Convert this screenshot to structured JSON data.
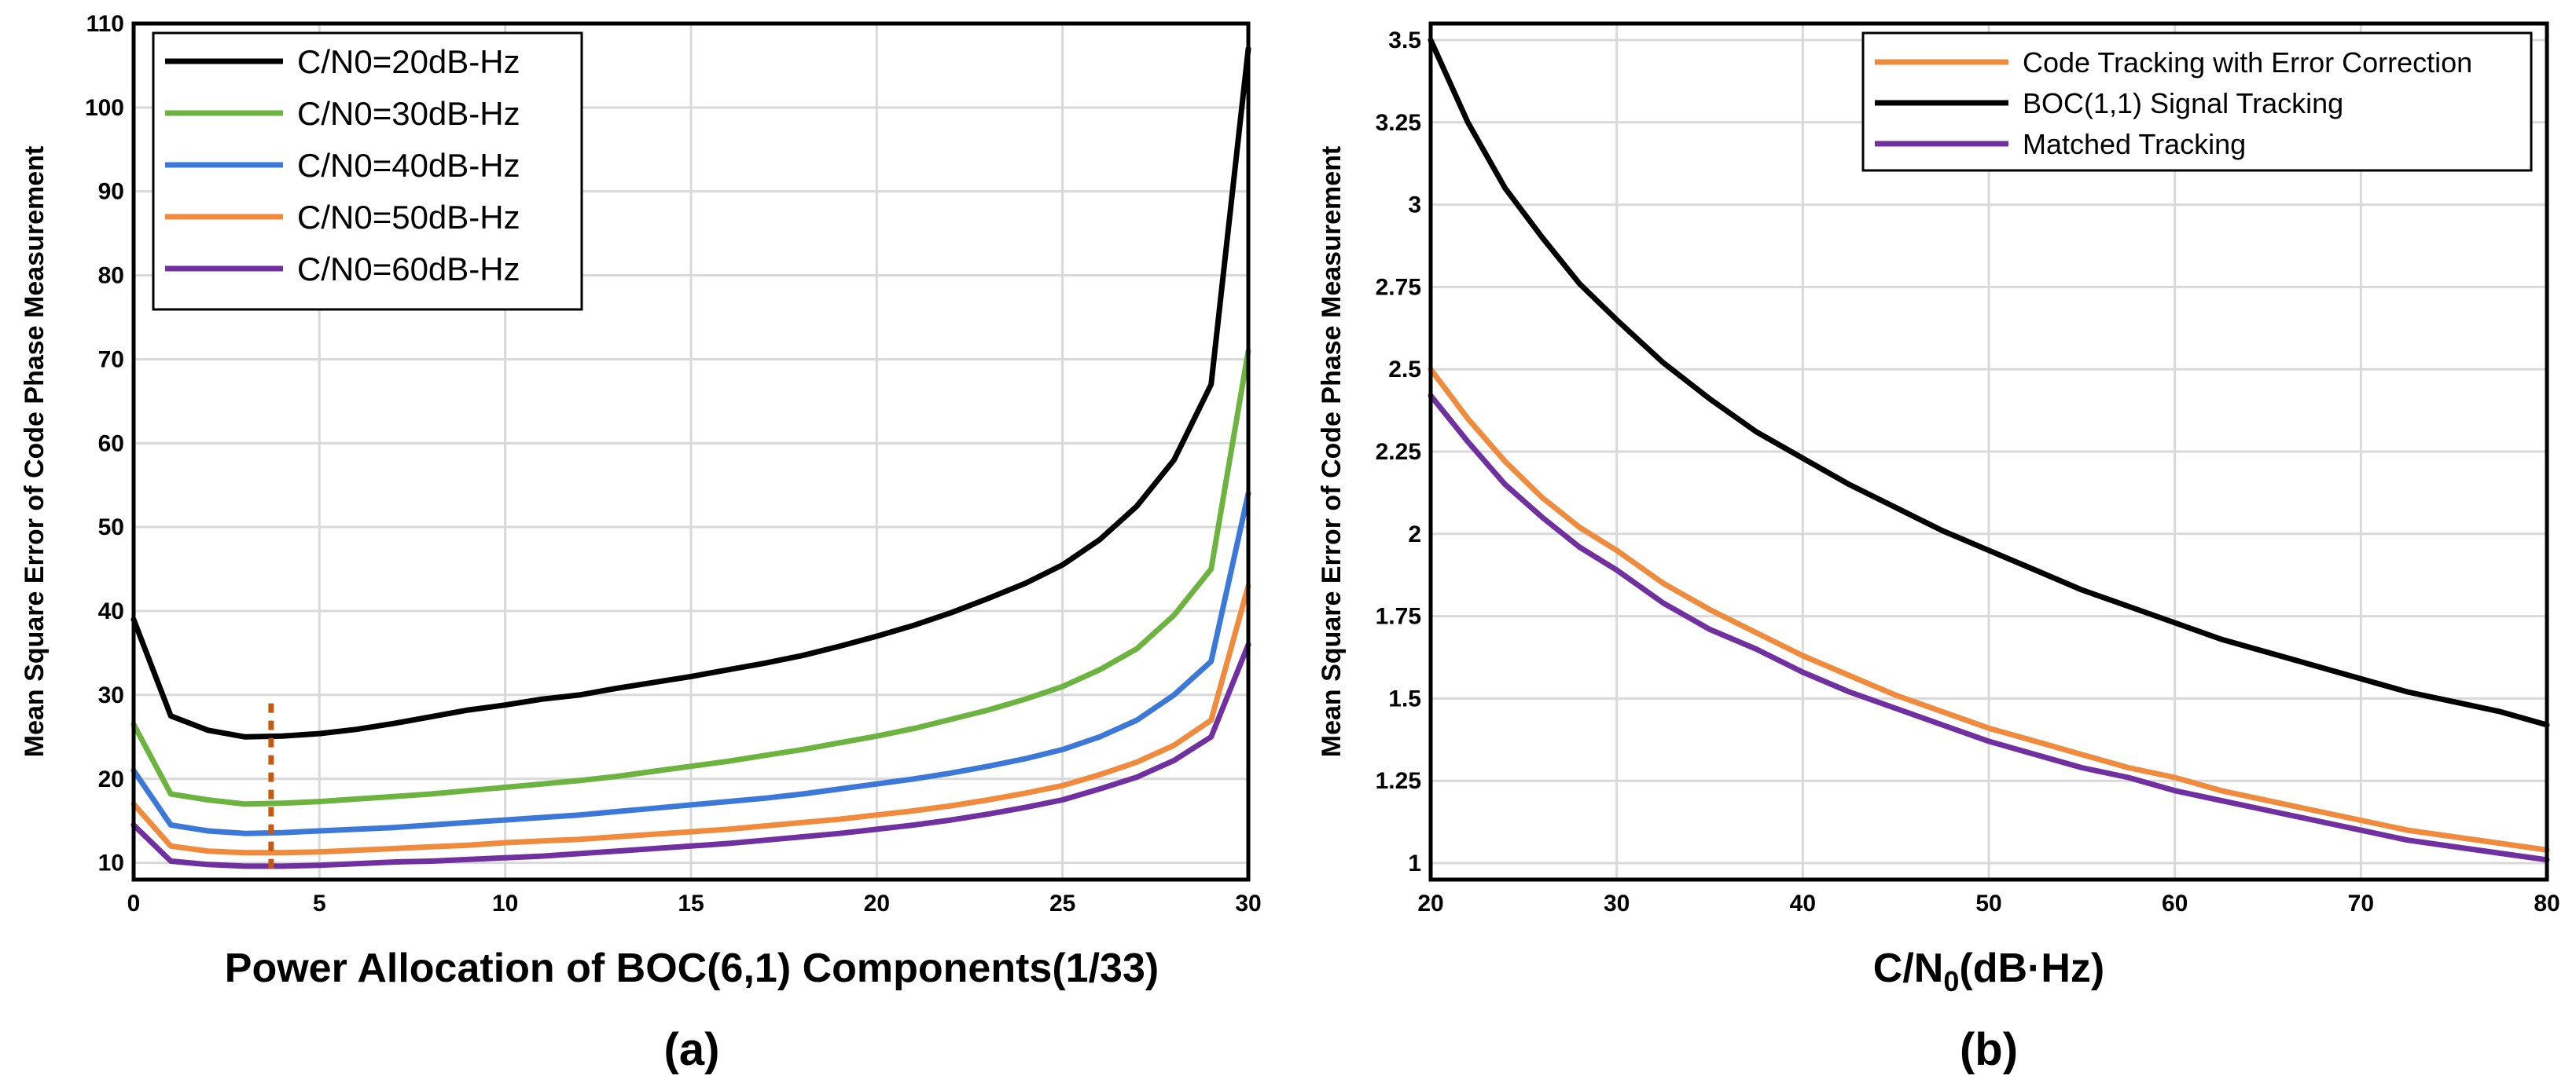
{
  "chart_data": [
    {
      "type": "line",
      "caption": "(a)",
      "xlabel": "Power Allocation of BOC(6,1) Components(1/33)",
      "ylabel": "Mean Square Error of Code Phase Measurement",
      "xlim": [
        0,
        30
      ],
      "ylim": [
        8,
        110
      ],
      "x_ticks": [
        "0",
        "5",
        "10",
        "15",
        "20",
        "25",
        "30"
      ],
      "y_ticks": [
        "10",
        "20",
        "30",
        "40",
        "50",
        "60",
        "70",
        "80",
        "90",
        "100",
        "110"
      ],
      "x": [
        0,
        1,
        2,
        3,
        4,
        5,
        6,
        7,
        8,
        9,
        10,
        11,
        12,
        13,
        14,
        15,
        16,
        17,
        18,
        19,
        20,
        21,
        22,
        23,
        24,
        25,
        26,
        27,
        28,
        29,
        30
      ],
      "marker_x": 3.7,
      "legend_position": "top-left",
      "series": [
        {
          "name": "C/N0=20dB-Hz",
          "color": "#000000",
          "values": [
            39,
            27.5,
            25.8,
            25,
            25.1,
            25.4,
            25.9,
            26.6,
            27.4,
            28.2,
            28.8,
            29.5,
            30,
            30.8,
            31.5,
            32.2,
            33,
            33.8,
            34.7,
            35.8,
            37,
            38.3,
            39.8,
            41.5,
            43.3,
            45.5,
            48.5,
            52.5,
            58,
            67,
            107
          ]
        },
        {
          "name": "C/N0=30dB-Hz",
          "color": "#6cb33f",
          "values": [
            26.5,
            18.2,
            17.5,
            17,
            17.1,
            17.3,
            17.6,
            17.9,
            18.2,
            18.6,
            19,
            19.4,
            19.8,
            20.3,
            20.9,
            21.5,
            22.1,
            22.8,
            23.5,
            24.3,
            25.1,
            26,
            27.1,
            28.2,
            29.5,
            31,
            33,
            35.5,
            39.5,
            45,
            71
          ]
        },
        {
          "name": "C/N0=40dB-Hz",
          "color": "#3c78d8",
          "values": [
            21,
            14.5,
            13.8,
            13.5,
            13.6,
            13.8,
            14,
            14.2,
            14.5,
            14.8,
            15.1,
            15.4,
            15.7,
            16.1,
            16.5,
            16.9,
            17.3,
            17.7,
            18.2,
            18.8,
            19.4,
            20,
            20.7,
            21.5,
            22.4,
            23.5,
            25,
            27,
            30,
            34,
            54
          ]
        },
        {
          "name": "C/N0=50dB-Hz",
          "color": "#f08a3c",
          "values": [
            17,
            12,
            11.4,
            11.2,
            11.2,
            11.3,
            11.5,
            11.7,
            11.9,
            12.1,
            12.4,
            12.6,
            12.8,
            13.1,
            13.4,
            13.7,
            14,
            14.4,
            14.8,
            15.2,
            15.7,
            16.2,
            16.8,
            17.5,
            18.3,
            19.2,
            20.5,
            22,
            24,
            27,
            43
          ]
        },
        {
          "name": "C/N0=60dB-Hz",
          "color": "#7030a0",
          "values": [
            14.5,
            10.2,
            9.8,
            9.6,
            9.6,
            9.7,
            9.9,
            10.1,
            10.2,
            10.4,
            10.6,
            10.8,
            11.1,
            11.4,
            11.7,
            12,
            12.3,
            12.7,
            13.1,
            13.5,
            14,
            14.5,
            15.1,
            15.8,
            16.6,
            17.5,
            18.8,
            20.2,
            22.2,
            25,
            36
          ]
        }
      ]
    },
    {
      "type": "line",
      "caption": "(b)",
      "xlabel_main": "C/N",
      "xlabel_sub": "0",
      "xlabel_rest": "(dB·Hz)",
      "ylabel": "Mean Square Error of Code Phase Measurement",
      "xlim": [
        20,
        80
      ],
      "ylim": [
        0.95,
        3.55
      ],
      "x_ticks": [
        "20",
        "30",
        "40",
        "50",
        "60",
        "70",
        "80"
      ],
      "y_ticks": [
        "1",
        "1.25",
        "1.5",
        "1.75",
        "2",
        "2.25",
        "2.5",
        "2.75",
        "3",
        "3.25",
        "3.5"
      ],
      "x": [
        20,
        22,
        24,
        26,
        28,
        30,
        32.5,
        35,
        37.5,
        40,
        42.5,
        45,
        47.5,
        50,
        52.5,
        55,
        57.5,
        60,
        62.5,
        65,
        67.5,
        70,
        72.5,
        75,
        77.5,
        80
      ],
      "legend_position": "top-right",
      "series": [
        {
          "name": "Code Tracking with Error Correction",
          "color": "#f08a3c",
          "values": [
            2.5,
            2.35,
            2.22,
            2.11,
            2.02,
            1.95,
            1.85,
            1.77,
            1.7,
            1.63,
            1.57,
            1.51,
            1.46,
            1.41,
            1.37,
            1.33,
            1.29,
            1.26,
            1.22,
            1.19,
            1.16,
            1.13,
            1.1,
            1.08,
            1.06,
            1.04
          ]
        },
        {
          "name": "BOC(1,1) Signal Tracking",
          "color": "#000000",
          "values": [
            3.5,
            3.25,
            3.05,
            2.9,
            2.76,
            2.65,
            2.52,
            2.41,
            2.31,
            2.23,
            2.15,
            2.08,
            2.01,
            1.95,
            1.89,
            1.83,
            1.78,
            1.73,
            1.68,
            1.64,
            1.6,
            1.56,
            1.52,
            1.49,
            1.46,
            1.42
          ]
        },
        {
          "name": "Matched Tracking",
          "color": "#7030a0",
          "values": [
            2.42,
            2.28,
            2.15,
            2.05,
            1.96,
            1.89,
            1.79,
            1.71,
            1.65,
            1.58,
            1.52,
            1.47,
            1.42,
            1.37,
            1.33,
            1.29,
            1.26,
            1.22,
            1.19,
            1.16,
            1.13,
            1.1,
            1.07,
            1.05,
            1.03,
            1.01
          ]
        }
      ]
    }
  ]
}
